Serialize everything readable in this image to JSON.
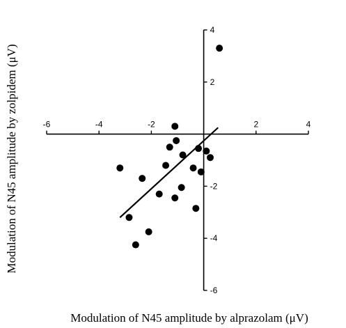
{
  "chart_data": {
    "type": "scatter",
    "title": "",
    "xlabel": "Modulation of N45 amplitude by alprazolam (μV)",
    "ylabel": "Modulation of N45 amplitude by zolpidem (μV)",
    "xlim": [
      -6,
      4
    ],
    "ylim": [
      -6,
      4
    ],
    "x_ticks": [
      -6,
      -4,
      -2,
      2,
      4
    ],
    "y_ticks": [
      4,
      2,
      -2,
      -4,
      -6
    ],
    "x_tick_labels": [
      "-6",
      "-4",
      "-2",
      "2",
      "4"
    ],
    "y_tick_labels": [
      "4",
      "2",
      "-2",
      "-4",
      "-6"
    ],
    "axes_cross_at_origin": true,
    "grid": false,
    "legend": "none",
    "series": [
      {
        "marker": "filled-circle",
        "color": "#000000",
        "points": [
          {
            "x": 0.6,
            "y": 3.3
          },
          {
            "x": -1.1,
            "y": 0.3
          },
          {
            "x": -1.05,
            "y": -0.25
          },
          {
            "x": -1.3,
            "y": -0.5
          },
          {
            "x": -0.2,
            "y": -0.55
          },
          {
            "x": 0.1,
            "y": -0.65
          },
          {
            "x": -0.8,
            "y": -0.8
          },
          {
            "x": 0.25,
            "y": -0.9
          },
          {
            "x": -1.45,
            "y": -1.2
          },
          {
            "x": -0.4,
            "y": -1.3
          },
          {
            "x": -0.1,
            "y": -1.45
          },
          {
            "x": -3.2,
            "y": -1.3
          },
          {
            "x": -2.35,
            "y": -1.7
          },
          {
            "x": -0.85,
            "y": -2.05
          },
          {
            "x": -1.7,
            "y": -2.3
          },
          {
            "x": -1.1,
            "y": -2.45
          },
          {
            "x": -0.3,
            "y": -2.85
          },
          {
            "x": -2.85,
            "y": -3.2
          },
          {
            "x": -2.1,
            "y": -3.75
          },
          {
            "x": -2.6,
            "y": -4.25
          }
        ]
      }
    ],
    "regression_line": {
      "x": [
        -3.2,
        0.55
      ],
      "y": [
        -3.2,
        0.25
      ],
      "color": "#000000"
    }
  }
}
